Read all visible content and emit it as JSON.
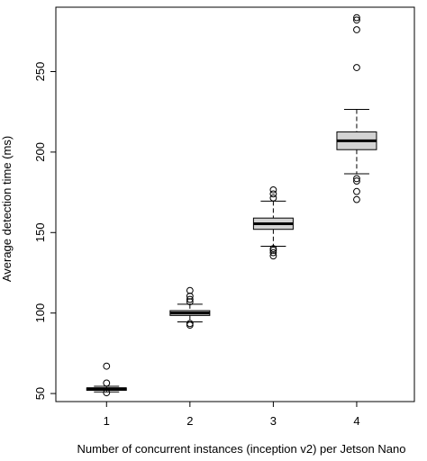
{
  "chart_data": {
    "type": "boxplot",
    "xlabel": "Number of concurrent instances (inception v2) per Jetson Nano",
    "ylabel": "Average detection time (ms)",
    "categories": [
      "1",
      "2",
      "3",
      "4"
    ],
    "ylim": [
      45,
      290
    ],
    "yticks": [
      50,
      100,
      150,
      200,
      250
    ],
    "box_fill": "#d3d3d3",
    "grid": false,
    "boxes": [
      {
        "category": "1",
        "whisker_low": 51,
        "q1": 52,
        "median": 53,
        "q3": 53.5,
        "whisker_high": 54.5,
        "outliers": [
          50.5,
          56.5,
          67
        ]
      },
      {
        "category": "2",
        "whisker_low": 94.5,
        "q1": 98.5,
        "median": 100,
        "q3": 101.5,
        "whisker_high": 105.5,
        "outliers": [
          92.5,
          93.5,
          107,
          108.5,
          110.5,
          114
        ]
      },
      {
        "category": "3",
        "whisker_low": 141.5,
        "q1": 152,
        "median": 155.5,
        "q3": 159,
        "whisker_high": 169.5,
        "outliers": [
          135.5,
          137.5,
          139,
          140,
          171.5,
          174,
          176.5
        ]
      },
      {
        "category": "4",
        "whisker_low": 186.5,
        "q1": 201.5,
        "median": 207,
        "q3": 212.5,
        "whisker_high": 226.5,
        "outliers": [
          170.5,
          175.5,
          182,
          183.5,
          252.5,
          276,
          282,
          283.5
        ]
      }
    ]
  }
}
